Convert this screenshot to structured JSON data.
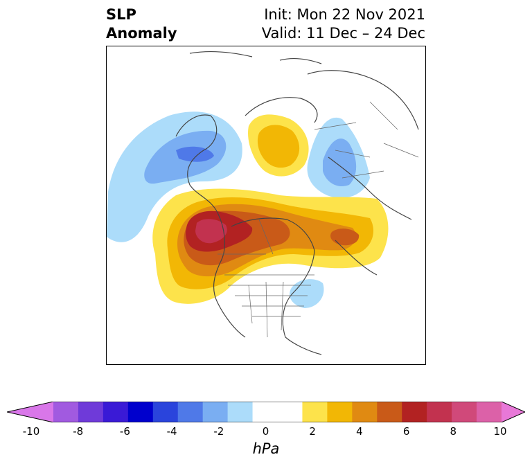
{
  "title": {
    "left_line1": "SLP",
    "left_line2": "Anomaly",
    "right_line1": "Init: Mon 22 Nov 2021",
    "right_line2": "Valid: 11 Dec – 24 Dec"
  },
  "colorbar": {
    "unit": "hPa",
    "ticks": [
      "-10",
      "-8",
      "-6",
      "-4",
      "-2",
      "0",
      "2",
      "4",
      "6",
      "8",
      "10"
    ],
    "bins": [
      {
        "range": [
          -10,
          -9
        ],
        "color": "#d977e9"
      },
      {
        "range": [
          -9,
          -8
        ],
        "color": "#a15ae0"
      },
      {
        "range": [
          -8,
          -7
        ],
        "color": "#6f3ad9"
      },
      {
        "range": [
          -7,
          -6
        ],
        "color": "#3a1ad6"
      },
      {
        "range": [
          -6,
          -5
        ],
        "color": "#0000cd"
      },
      {
        "range": [
          -5,
          -4
        ],
        "color": "#2a44dc"
      },
      {
        "range": [
          -4,
          -3
        ],
        "color": "#4f79e8"
      },
      {
        "range": [
          -3,
          -2
        ],
        "color": "#7aaef2"
      },
      {
        "range": [
          -2,
          -1
        ],
        "color": "#acdcfa"
      },
      {
        "range": [
          -1,
          0
        ],
        "color": "#ffffff"
      },
      {
        "range": [
          0,
          1
        ],
        "color": "#ffffff"
      },
      {
        "range": [
          1,
          2
        ],
        "color": "#fde34b"
      },
      {
        "range": [
          2,
          3
        ],
        "color": "#f2b705"
      },
      {
        "range": [
          3,
          4
        ],
        "color": "#e08a12"
      },
      {
        "range": [
          4,
          5
        ],
        "color": "#c95a18"
      },
      {
        "range": [
          5,
          6
        ],
        "color": "#b22222"
      },
      {
        "range": [
          6,
          7
        ],
        "color": "#c2324f"
      },
      {
        "range": [
          7,
          8
        ],
        "color": "#d0497a"
      },
      {
        "range": [
          8,
          9
        ],
        "color": "#dc61a8"
      },
      {
        "range": [
          9,
          10
        ],
        "color": "#e878d8"
      }
    ]
  }
}
